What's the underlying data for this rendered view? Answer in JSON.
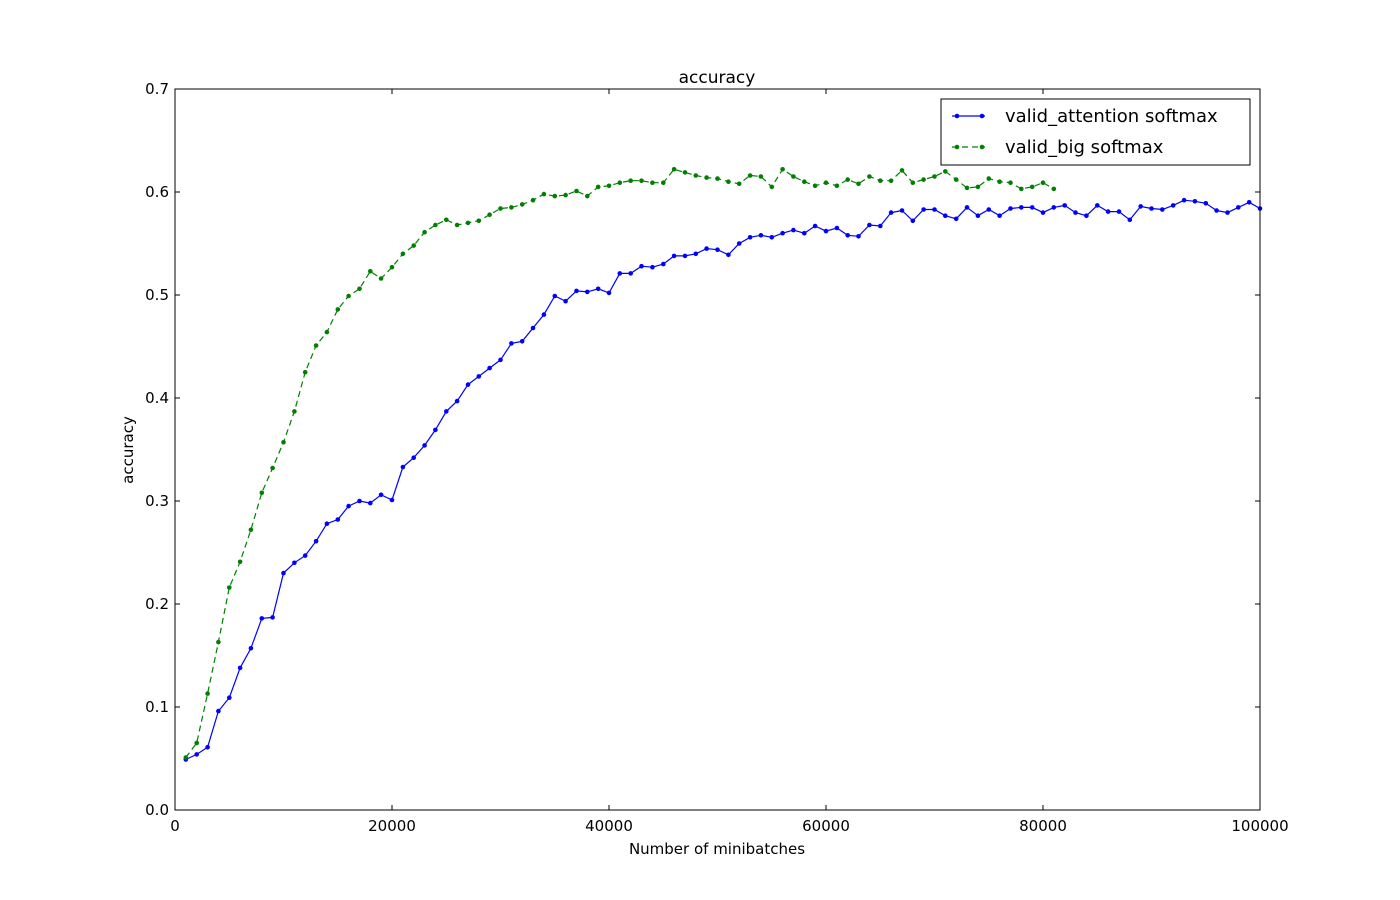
{
  "chart_data": {
    "type": "line",
    "title": "accuracy",
    "xlabel": "Number of minibatches",
    "ylabel": "accuracy",
    "xlim": [
      0,
      100000
    ],
    "ylim": [
      0.0,
      0.7
    ],
    "xticks": [
      0,
      20000,
      40000,
      60000,
      80000,
      100000
    ],
    "xtick_labels": [
      "0",
      "20000",
      "40000",
      "60000",
      "80000",
      "100000"
    ],
    "yticks": [
      0.0,
      0.1,
      0.2,
      0.3,
      0.4,
      0.5,
      0.6,
      0.7
    ],
    "ytick_labels": [
      "0.0",
      "0.1",
      "0.2",
      "0.3",
      "0.4",
      "0.5",
      "0.6",
      "0.7"
    ],
    "grid": false,
    "legend_position": "top-right",
    "series": [
      {
        "name": "valid_attention softmax",
        "color": "#0000ff",
        "linestyle": "solid",
        "x": [
          1000,
          2000,
          3000,
          4000,
          5000,
          6000,
          7000,
          8000,
          9000,
          10000,
          11000,
          12000,
          13000,
          14000,
          15000,
          16000,
          17000,
          18000,
          19000,
          20000,
          21000,
          22000,
          23000,
          24000,
          25000,
          26000,
          27000,
          28000,
          29000,
          30000,
          31000,
          32000,
          33000,
          34000,
          35000,
          36000,
          37000,
          38000,
          39000,
          40000,
          41000,
          42000,
          43000,
          44000,
          45000,
          46000,
          47000,
          48000,
          49000,
          50000,
          51000,
          52000,
          53000,
          54000,
          55000,
          56000,
          57000,
          58000,
          59000,
          60000,
          61000,
          62000,
          63000,
          64000,
          65000,
          66000,
          67000,
          68000,
          69000,
          70000,
          71000,
          72000,
          73000,
          74000,
          75000,
          76000,
          77000,
          78000,
          79000,
          80000,
          81000,
          82000,
          83000,
          84000,
          85000,
          86000,
          87000,
          88000,
          89000,
          90000,
          91000,
          92000,
          93000,
          94000,
          95000,
          96000,
          97000,
          98000,
          99000,
          100000
        ],
        "y": [
          0.049,
          0.054,
          0.061,
          0.096,
          0.109,
          0.138,
          0.157,
          0.186,
          0.187,
          0.23,
          0.24,
          0.247,
          0.261,
          0.278,
          0.282,
          0.295,
          0.3,
          0.298,
          0.306,
          0.301,
          0.333,
          0.342,
          0.354,
          0.369,
          0.387,
          0.397,
          0.413,
          0.421,
          0.429,
          0.437,
          0.453,
          0.455,
          0.468,
          0.481,
          0.499,
          0.494,
          0.504,
          0.503,
          0.506,
          0.502,
          0.521,
          0.521,
          0.528,
          0.527,
          0.53,
          0.538,
          0.538,
          0.54,
          0.545,
          0.544,
          0.539,
          0.55,
          0.556,
          0.558,
          0.556,
          0.56,
          0.563,
          0.56,
          0.567,
          0.562,
          0.565,
          0.558,
          0.557,
          0.568,
          0.567,
          0.58,
          0.582,
          0.572,
          0.583,
          0.583,
          0.577,
          0.574,
          0.585,
          0.577,
          0.583,
          0.577,
          0.584,
          0.585,
          0.585,
          0.58,
          0.585,
          0.587,
          0.58,
          0.577,
          0.587,
          0.581,
          0.581,
          0.573,
          0.586,
          0.584,
          0.583,
          0.587,
          0.592,
          0.591,
          0.589,
          0.582,
          0.58,
          0.585,
          0.59,
          0.584
        ]
      },
      {
        "name": "valid_big softmax",
        "color": "#007f00",
        "linestyle": "dashed",
        "x": [
          1000,
          2000,
          3000,
          4000,
          5000,
          6000,
          7000,
          8000,
          9000,
          10000,
          11000,
          12000,
          13000,
          14000,
          15000,
          16000,
          17000,
          18000,
          19000,
          20000,
          21000,
          22000,
          23000,
          24000,
          25000,
          26000,
          27000,
          28000,
          29000,
          30000,
          31000,
          32000,
          33000,
          34000,
          35000,
          36000,
          37000,
          38000,
          39000,
          40000,
          41000,
          42000,
          43000,
          44000,
          45000,
          46000,
          47000,
          48000,
          49000,
          50000,
          51000,
          52000,
          53000,
          54000,
          55000,
          56000,
          57000,
          58000,
          59000,
          60000,
          61000,
          62000,
          63000,
          64000,
          65000,
          66000,
          67000,
          68000,
          69000,
          70000,
          71000,
          72000,
          73000,
          74000,
          75000,
          76000,
          77000,
          78000,
          79000,
          80000,
          81000
        ],
        "y": [
          0.051,
          0.065,
          0.113,
          0.163,
          0.216,
          0.241,
          0.272,
          0.308,
          0.332,
          0.357,
          0.387,
          0.425,
          0.451,
          0.464,
          0.486,
          0.499,
          0.506,
          0.523,
          0.516,
          0.527,
          0.54,
          0.548,
          0.561,
          0.568,
          0.573,
          0.568,
          0.57,
          0.572,
          0.578,
          0.584,
          0.585,
          0.588,
          0.592,
          0.598,
          0.596,
          0.597,
          0.601,
          0.596,
          0.605,
          0.606,
          0.609,
          0.611,
          0.611,
          0.609,
          0.609,
          0.622,
          0.619,
          0.616,
          0.614,
          0.613,
          0.61,
          0.608,
          0.616,
          0.615,
          0.605,
          0.622,
          0.615,
          0.61,
          0.606,
          0.609,
          0.606,
          0.612,
          0.608,
          0.615,
          0.611,
          0.611,
          0.621,
          0.609,
          0.612,
          0.615,
          0.62,
          0.612,
          0.604,
          0.605,
          0.613,
          0.61,
          0.609,
          0.603,
          0.605,
          0.609,
          0.603
        ]
      }
    ]
  }
}
